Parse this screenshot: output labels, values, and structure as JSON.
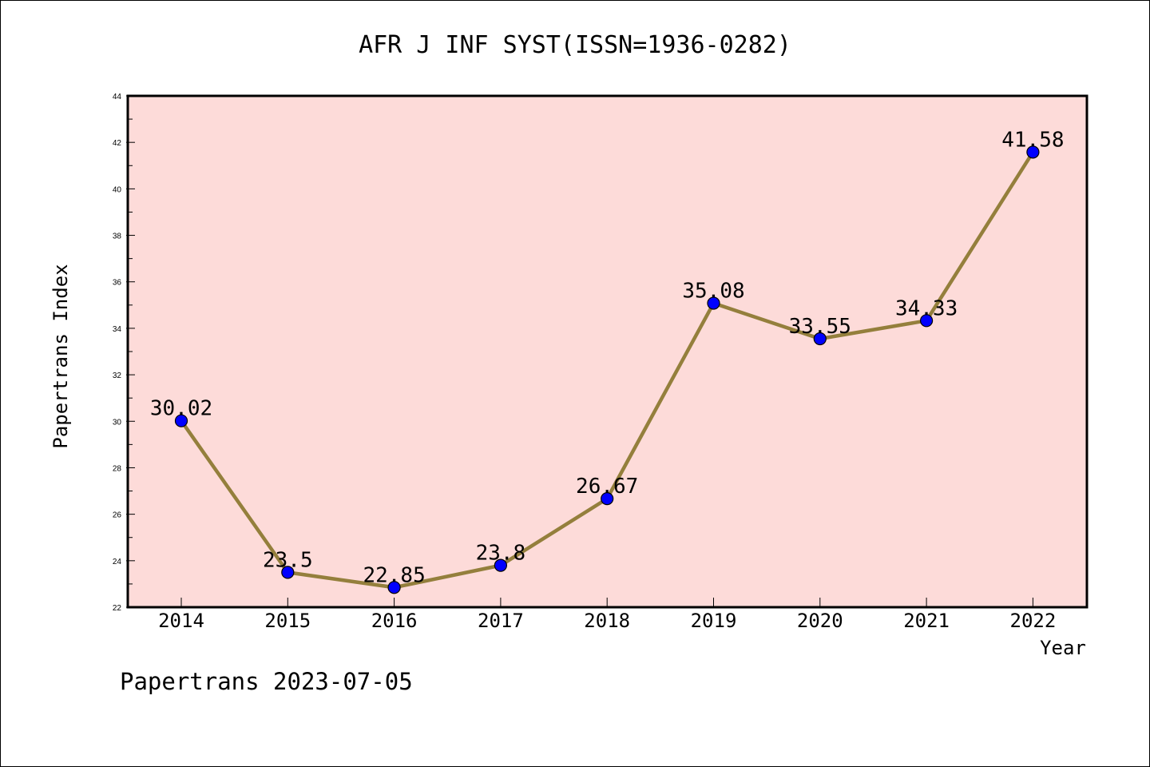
{
  "chart_data": {
    "type": "line",
    "title": "AFR J INF SYST(ISSN=1936-0282)",
    "xlabel": "Year",
    "ylabel": "Papertrans Index",
    "footer": "Papertrans 2023-07-05",
    "categories": [
      "2014",
      "2015",
      "2016",
      "2017",
      "2018",
      "2019",
      "2020",
      "2021",
      "2022"
    ],
    "series": [
      {
        "values": [
          30.02,
          23.5,
          22.85,
          23.8,
          26.67,
          35.08,
          33.55,
          34.33,
          41.58
        ],
        "labels": [
          "30.02",
          "23.5",
          "22.85",
          "23.8",
          "26.67",
          "35.08",
          "33.55",
          "34.33",
          "41.58"
        ]
      }
    ],
    "ylim": [
      22,
      44
    ],
    "yticks": [
      "22",
      "24",
      "26",
      "28",
      "30",
      "32",
      "34",
      "36",
      "38",
      "40",
      "42",
      "44"
    ],
    "grid": false,
    "colors": {
      "plot_background": "#fddbd9",
      "line": "#947f3c",
      "marker": "#0000ff"
    }
  }
}
